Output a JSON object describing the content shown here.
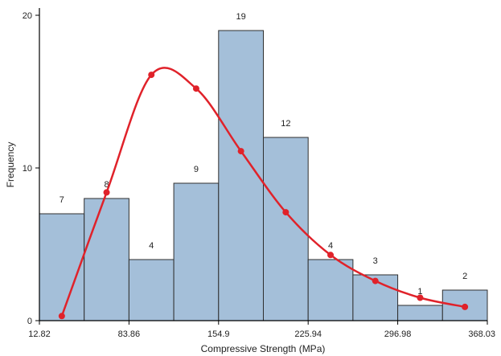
{
  "chart_data": {
    "type": "bar",
    "subtype": "histogram",
    "xlabel": "Compressive Strength (MPa)",
    "ylabel": "Frequency",
    "x_ticks": [
      "12.82",
      "83.86",
      "154.9",
      "225.94",
      "296.98",
      "368.03"
    ],
    "x_tick_values": [
      12.82,
      83.86,
      154.9,
      225.94,
      296.98,
      368.03
    ],
    "xlim": [
      12.82,
      368.03
    ],
    "ylim": [
      0,
      20
    ],
    "y_ticks": [
      "0",
      "10",
      "20"
    ],
    "y_tick_values": [
      0,
      10,
      20
    ],
    "bins": [
      {
        "start": 12.82,
        "end": 48.34,
        "value": 7,
        "label": "7"
      },
      {
        "start": 48.34,
        "end": 83.86,
        "value": 8,
        "label": "8"
      },
      {
        "start": 83.86,
        "end": 119.38,
        "value": 4,
        "label": "4"
      },
      {
        "start": 119.38,
        "end": 154.9,
        "value": 9,
        "label": "9"
      },
      {
        "start": 154.9,
        "end": 190.42,
        "value": 19,
        "label": "19"
      },
      {
        "start": 190.42,
        "end": 225.94,
        "value": 12,
        "label": "12"
      },
      {
        "start": 225.94,
        "end": 261.46,
        "value": 4,
        "label": "4"
      },
      {
        "start": 261.46,
        "end": 296.98,
        "value": 3,
        "label": "3"
      },
      {
        "start": 296.98,
        "end": 332.5,
        "value": 1,
        "label": "1"
      },
      {
        "start": 332.5,
        "end": 368.03,
        "value": 2,
        "label": "2"
      }
    ],
    "curve": {
      "type": "line",
      "points": [
        {
          "x": 30.58,
          "y": 0.3
        },
        {
          "x": 66.1,
          "y": 8.4
        },
        {
          "x": 101.62,
          "y": 16.1
        },
        {
          "x": 137.14,
          "y": 15.2
        },
        {
          "x": 172.66,
          "y": 11.1
        },
        {
          "x": 208.18,
          "y": 7.1
        },
        {
          "x": 243.7,
          "y": 4.3
        },
        {
          "x": 279.22,
          "y": 2.6
        },
        {
          "x": 314.74,
          "y": 1.5
        },
        {
          "x": 350.26,
          "y": 0.9
        }
      ]
    },
    "grid": false,
    "colors": {
      "bar_fill": "#a4bfd9",
      "bar_stroke": "#2f2f2f",
      "curve": "#e0222a"
    }
  }
}
